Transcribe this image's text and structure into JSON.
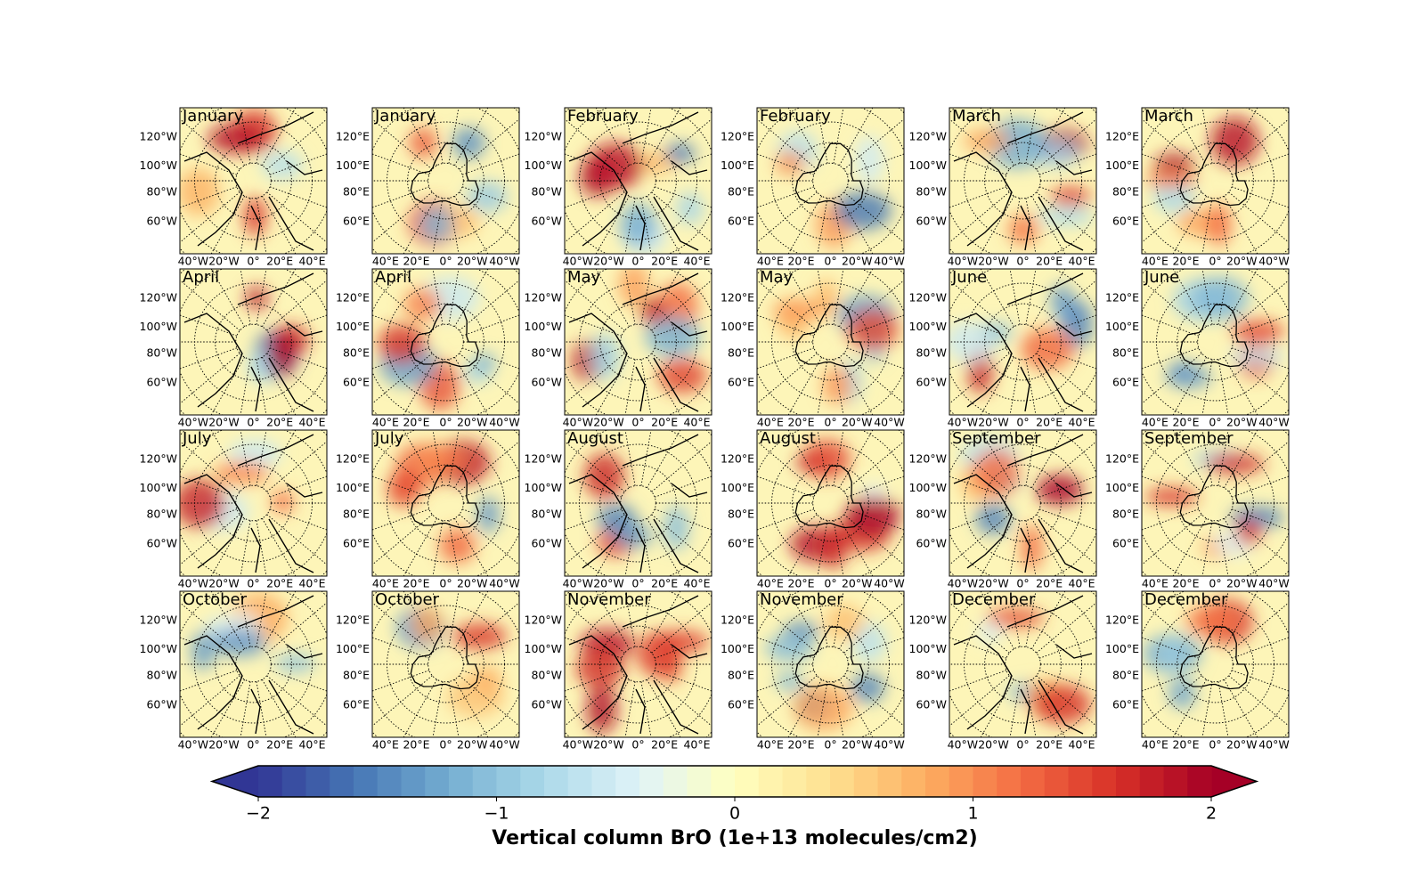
{
  "panels": [
    {
      "title": "January",
      "axes": "north"
    },
    {
      "title": "January",
      "axes": "south"
    },
    {
      "title": "February",
      "axes": "north"
    },
    {
      "title": "February",
      "axes": "south"
    },
    {
      "title": "March",
      "axes": "north"
    },
    {
      "title": "March",
      "axes": "south"
    },
    {
      "title": "April",
      "axes": "north"
    },
    {
      "title": "April",
      "axes": "south"
    },
    {
      "title": "May",
      "axes": "north"
    },
    {
      "title": "May",
      "axes": "south"
    },
    {
      "title": "June",
      "axes": "north"
    },
    {
      "title": "June",
      "axes": "south"
    },
    {
      "title": "July",
      "axes": "north"
    },
    {
      "title": "July",
      "axes": "south"
    },
    {
      "title": "August",
      "axes": "north"
    },
    {
      "title": "August",
      "axes": "south"
    },
    {
      "title": "September",
      "axes": "north"
    },
    {
      "title": "September",
      "axes": "south"
    },
    {
      "title": "October",
      "axes": "north"
    },
    {
      "title": "October",
      "axes": "south"
    },
    {
      "title": "November",
      "axes": "north"
    },
    {
      "title": "November",
      "axes": "south"
    },
    {
      "title": "December",
      "axes": "north"
    },
    {
      "title": "December",
      "axes": "south"
    }
  ],
  "axes": {
    "north": {
      "left": [
        "120°W",
        "100°W",
        "80°W",
        "60°W"
      ],
      "bottom": [
        "40°W",
        "20°W",
        "0°",
        "20°E",
        "40°E"
      ]
    },
    "south": {
      "left": [
        "120°E",
        "100°E",
        "80°E",
        "60°E"
      ],
      "bottom": [
        "40°E",
        "20°E",
        "0°",
        "20°W",
        "40°W"
      ]
    }
  },
  "colorbar": {
    "label": "Vertical column BrO (1e+13 molecules/cm2)",
    "colormap": "RdYlBu_r",
    "lim": [
      -2,
      2
    ],
    "ticks": [
      {
        "value": -2,
        "label": "−2"
      },
      {
        "value": -1,
        "label": "−1"
      },
      0,
      1,
      2
    ],
    "extend": "both"
  }
}
